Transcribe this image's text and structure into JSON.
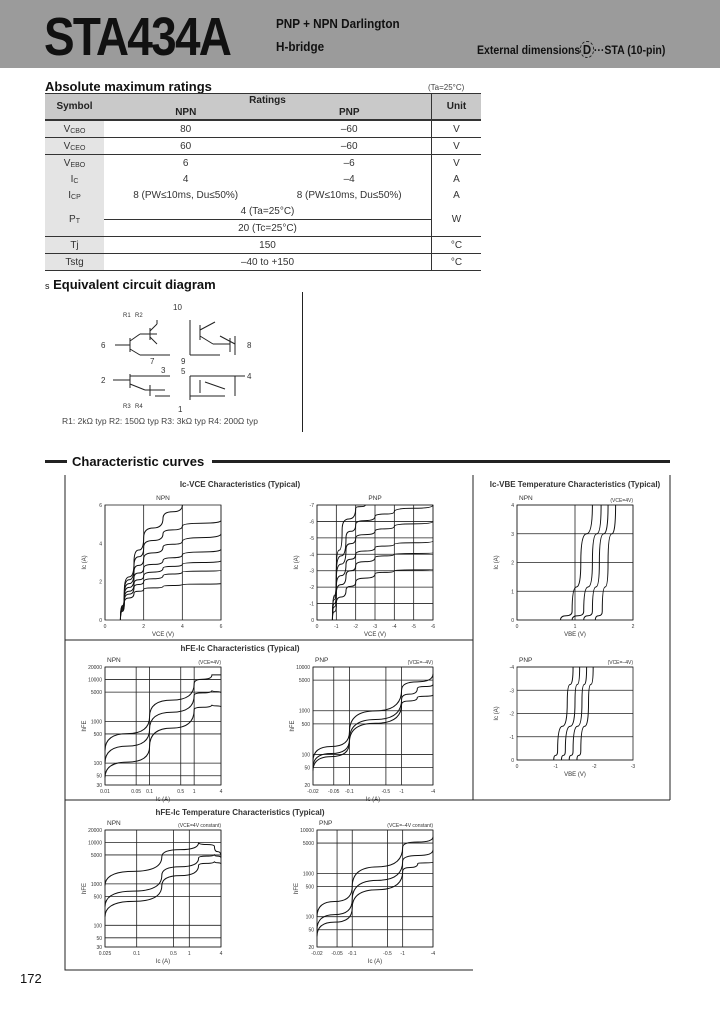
{
  "header": {
    "part_number": "STA434A",
    "subtitle_line1": "PNP + NPN Darlington",
    "subtitle_line2": "H-bridge",
    "external_dimensions_label": "External dimensions",
    "external_dimensions_code": "D",
    "external_dimensions_package": "···STA (10-pin)"
  },
  "ratings": {
    "title": "Absolute maximum ratings",
    "condition": "(Ta=25°C)",
    "columns": {
      "symbol": "Symbol",
      "ratings": "Ratings",
      "npn": "NPN",
      "pnp": "PNP",
      "unit": "Unit"
    },
    "rows": [
      {
        "sym": "V",
        "sub": "CBO",
        "npn": "80",
        "pnp": "–60",
        "unit": "V"
      },
      {
        "sym": "V",
        "sub": "CEO",
        "npn": "60",
        "pnp": "–60",
        "unit": "V"
      },
      {
        "sym": "V",
        "sub": "EBO",
        "npn": "6",
        "pnp": "–6",
        "unit": "V"
      },
      {
        "sym": "I",
        "sub": "C",
        "npn": "4",
        "pnp": "–4",
        "unit": "A"
      },
      {
        "sym": "I",
        "sub": "CP",
        "npn": "8 (PW≤10ms, Du≤50%)",
        "pnp": "8 (PW≤10ms, Du≤50%)",
        "unit": "A"
      }
    ],
    "pt": {
      "sym": "P",
      "sub": "T",
      "value1": "4 (Ta=25°C)",
      "value2": "20 (Tc=25°C)",
      "unit": "W"
    },
    "tj": {
      "sym": "Tj",
      "value": "150",
      "unit": "°C"
    },
    "tstg": {
      "sym": "Tstg",
      "value": "–40 to +150",
      "unit": "°C"
    }
  },
  "circuit": {
    "title": "Equivalent circuit diagram",
    "bullet": "s",
    "pins": [
      "10",
      "6",
      "7",
      "8",
      "9",
      "2",
      "3",
      "5",
      "4",
      "1"
    ],
    "resistor_labels": [
      "R1",
      "R2",
      "R3",
      "R4"
    ],
    "legend": "R1: 2kΩ typ  R2: 150Ω typ  R3: 3kΩ typ  R4: 200Ω typ"
  },
  "curves_section": {
    "title": "Characteristic curves"
  },
  "chart_titles": {
    "ic_vce": "Ic-VCE Characteristics (Typical)",
    "ic_vbe_temp": "Ic-VBE Temperature Characteristics (Typical)",
    "hfe_ic": "hFE-Ic Characteristics (Typical)",
    "hfe_ic_temp": "hFE-Ic Temperature Characteristics (Typical)"
  },
  "chart_data": [
    {
      "type": "line",
      "title": "NPN",
      "xlabel": "VCE (V)",
      "ylabel": "Ic (A)",
      "xscale": "linear",
      "yscale": "linear",
      "xlim": [
        0,
        6
      ],
      "ylim": [
        0,
        6
      ],
      "xticks": [
        0,
        2,
        4,
        6
      ],
      "yticks": [
        0,
        2,
        4,
        6
      ],
      "grid": "vertical",
      "note": "",
      "series": [
        {
          "points": [
            [
              0.8,
              0
            ],
            [
              1,
              1.5
            ],
            [
              1.5,
              3
            ],
            [
              2,
              4.3
            ],
            [
              3,
              5.3
            ],
            [
              4,
              6
            ]
          ]
        },
        {
          "points": [
            [
              0.8,
              0
            ],
            [
              1,
              1.4
            ],
            [
              1.5,
              2.8
            ],
            [
              2,
              3.8
            ],
            [
              3,
              4.5
            ],
            [
              4,
              4.9
            ],
            [
              6,
              5.2
            ]
          ]
        },
        {
          "points": [
            [
              0.8,
              0
            ],
            [
              1,
              1.3
            ],
            [
              1.5,
              2.5
            ],
            [
              2,
              3.2
            ],
            [
              3,
              3.8
            ],
            [
              4,
              4.1
            ],
            [
              6,
              4.5
            ]
          ]
        },
        {
          "points": [
            [
              0.8,
              0
            ],
            [
              1,
              1.2
            ],
            [
              1.5,
              2.2
            ],
            [
              2,
              2.7
            ],
            [
              3,
              3.1
            ],
            [
              4,
              3.4
            ],
            [
              6,
              3.7
            ]
          ]
        },
        {
          "points": [
            [
              0.8,
              0
            ],
            [
              1,
              1.1
            ],
            [
              1.5,
              1.9
            ],
            [
              2,
              2.3
            ],
            [
              3,
              2.7
            ],
            [
              4,
              2.9
            ],
            [
              6,
              3.1
            ]
          ]
        },
        {
          "points": [
            [
              0.8,
              0
            ],
            [
              1,
              1.0
            ],
            [
              1.5,
              1.7
            ],
            [
              2,
              2.0
            ],
            [
              3,
              2.3
            ],
            [
              4,
              2.5
            ],
            [
              6,
              2.6
            ]
          ]
        },
        {
          "points": [
            [
              0.8,
              0
            ],
            [
              1,
              0.9
            ],
            [
              1.5,
              1.4
            ],
            [
              2,
              1.6
            ],
            [
              3,
              1.75
            ],
            [
              4,
              1.85
            ],
            [
              6,
              1.9
            ]
          ]
        }
      ]
    },
    {
      "type": "line",
      "title": "PNP",
      "xlabel": "VCE (V)",
      "ylabel": "Ic (A)",
      "xscale": "linear",
      "yscale": "linear",
      "xlim": [
        0,
        -6
      ],
      "ylim": [
        0,
        -7
      ],
      "xticks": [
        0,
        -1,
        -2,
        -3,
        -4,
        -5,
        -6
      ],
      "yticks": [
        0,
        -1,
        -2,
        -3,
        -4,
        -5,
        -6,
        -7
      ],
      "grid": "both",
      "note": "",
      "series": [
        {
          "points": [
            [
              -0.8,
              0
            ],
            [
              -1,
              -3
            ],
            [
              -1.3,
              -5.5
            ],
            [
              -2,
              -6.8
            ],
            [
              -2.5,
              -7
            ]
          ]
        },
        {
          "points": [
            [
              -0.8,
              0
            ],
            [
              -1,
              -2.8
            ],
            [
              -1.5,
              -5
            ],
            [
              -2,
              -5.8
            ],
            [
              -3,
              -6.3
            ],
            [
              -4,
              -6.6
            ],
            [
              -6,
              -7
            ]
          ]
        },
        {
          "points": [
            [
              -0.8,
              0
            ],
            [
              -1,
              -2.5
            ],
            [
              -1.5,
              -4.3
            ],
            [
              -2,
              -5
            ],
            [
              -3,
              -5.4
            ],
            [
              -4,
              -5.7
            ],
            [
              -6,
              -6
            ]
          ]
        },
        {
          "points": [
            [
              -0.8,
              0
            ],
            [
              -1,
              -2
            ],
            [
              -1.5,
              -3.4
            ],
            [
              -2,
              -4
            ],
            [
              -3,
              -4.4
            ],
            [
              -4,
              -4.6
            ],
            [
              -6,
              -4.8
            ]
          ]
        },
        {
          "points": [
            [
              -0.8,
              0
            ],
            [
              -1,
              -1.6
            ],
            [
              -1.5,
              -2.7
            ],
            [
              -2,
              -3.3
            ],
            [
              -3,
              -3.8
            ],
            [
              -4,
              -4
            ],
            [
              -6,
              -4.1
            ]
          ]
        },
        {
          "points": [
            [
              -0.8,
              0
            ],
            [
              -1,
              -1
            ],
            [
              -1.5,
              -1.8
            ],
            [
              -2,
              -2.3
            ],
            [
              -3,
              -2.8
            ],
            [
              -4,
              -3
            ],
            [
              -6,
              -3.1
            ]
          ]
        }
      ]
    },
    {
      "type": "line",
      "title": "NPN",
      "xlabel": "VBE (V)",
      "ylabel": "Ic (A)",
      "xscale": "linear",
      "yscale": "linear",
      "xlim": [
        0,
        2
      ],
      "ylim": [
        0,
        4
      ],
      "xticks": [
        0,
        1,
        2
      ],
      "yticks": [
        0,
        1,
        2,
        3,
        4
      ],
      "grid": "both",
      "note": "(VCE=4V)",
      "series": [
        {
          "points": [
            [
              0.75,
              0
            ],
            [
              0.95,
              0.3
            ],
            [
              1.1,
              2
            ],
            [
              1.3,
              4
            ]
          ]
        },
        {
          "points": [
            [
              0.95,
              0
            ],
            [
              1.15,
              0.3
            ],
            [
              1.3,
              2
            ],
            [
              1.45,
              4
            ]
          ]
        },
        {
          "points": [
            [
              1.15,
              0
            ],
            [
              1.3,
              0.3
            ],
            [
              1.42,
              2
            ],
            [
              1.57,
              4
            ]
          ]
        },
        {
          "points": [
            [
              1.35,
              0
            ],
            [
              1.47,
              0.3
            ],
            [
              1.57,
              2
            ],
            [
              1.7,
              4
            ]
          ]
        }
      ]
    },
    {
      "type": "line",
      "title": "PNP",
      "xlabel": "VBE (V)",
      "ylabel": "Ic (A)",
      "xscale": "linear",
      "yscale": "linear",
      "xlim": [
        0,
        -3
      ],
      "ylim": [
        0,
        -4
      ],
      "xticks": [
        0,
        -1,
        -2,
        -3
      ],
      "yticks": [
        0,
        -1,
        -2,
        -3,
        -4
      ],
      "grid": "horizontal",
      "note": "(VCE=–4V)",
      "series": [
        {
          "points": [
            [
              -0.95,
              0
            ],
            [
              -1.05,
              -0.4
            ],
            [
              -1.3,
              -2.5
            ],
            [
              -1.45,
              -4
            ]
          ]
        },
        {
          "points": [
            [
              -1.15,
              0
            ],
            [
              -1.25,
              -0.4
            ],
            [
              -1.5,
              -2.5
            ],
            [
              -1.62,
              -4
            ]
          ]
        },
        {
          "points": [
            [
              -1.35,
              0
            ],
            [
              -1.45,
              -0.4
            ],
            [
              -1.68,
              -2.5
            ],
            [
              -1.8,
              -4
            ]
          ]
        },
        {
          "points": [
            [
              -1.55,
              0
            ],
            [
              -1.65,
              -0.4
            ],
            [
              -1.85,
              -2.5
            ],
            [
              -1.97,
              -4
            ]
          ]
        }
      ]
    },
    {
      "type": "line",
      "title": "NPN",
      "xlabel": "Ic (A)",
      "ylabel": "hFE",
      "xscale": "log",
      "yscale": "log",
      "xlim": [
        0.01,
        4
      ],
      "ylim": [
        30,
        20000
      ],
      "xticks": [
        0.01,
        0.05,
        0.1,
        0.5,
        1,
        4
      ],
      "yticks": [
        30,
        50,
        100,
        500,
        1000,
        5000,
        10000,
        20000
      ],
      "grid": "both",
      "note": "(VCE=4V)",
      "series": [
        {
          "points": [
            [
              0.01,
              200
            ],
            [
              0.1,
              1300
            ],
            [
              1,
              8000
            ],
            [
              2.5,
              13000
            ],
            [
              4,
              13000
            ]
          ]
        },
        {
          "points": [
            [
              0.01,
              100
            ],
            [
              0.1,
              650
            ],
            [
              1,
              4200
            ],
            [
              2.5,
              5500
            ],
            [
              4,
              4800
            ]
          ]
        },
        {
          "points": [
            [
              0.01,
              45
            ],
            [
              0.1,
              250
            ],
            [
              1,
              1900
            ],
            [
              2.5,
              2500
            ],
            [
              4,
              2200
            ]
          ]
        }
      ]
    },
    {
      "type": "line",
      "title": "PNP",
      "xlabel": "Ic (A)",
      "ylabel": "hFE",
      "xscale": "log",
      "yscale": "log",
      "xlim": [
        -0.02,
        -4
      ],
      "ylim": [
        20,
        10000
      ],
      "xticks": [
        -0.02,
        -0.05,
        -0.1,
        -0.5,
        -1,
        -4
      ],
      "yticks": [
        20,
        50,
        100,
        500,
        1000,
        5000,
        10000
      ],
      "grid": "both",
      "note": "(VCE=–4V)",
      "series": [
        {
          "points": [
            [
              -0.02,
              70
            ],
            [
              -0.1,
              330
            ],
            [
              -1,
              3000
            ],
            [
              -4,
              7000
            ]
          ]
        },
        {
          "points": [
            [
              -0.02,
              50
            ],
            [
              -0.1,
              220
            ],
            [
              -1,
              1800
            ],
            [
              -2,
              3200
            ],
            [
              -4,
              4000
            ]
          ]
        },
        {
          "points": [
            [
              -0.02,
              42
            ],
            [
              -0.1,
              190
            ],
            [
              -1,
              1400
            ],
            [
              -2,
              2000
            ],
            [
              -4,
              2300
            ]
          ]
        }
      ]
    },
    {
      "type": "line",
      "title": "NPN",
      "xlabel": "Ic (A)",
      "ylabel": "hFE",
      "xscale": "log",
      "yscale": "log",
      "xlim": [
        0.025,
        4
      ],
      "ylim": [
        30,
        20000
      ],
      "xticks": [
        0.025,
        0.1,
        0.5,
        1,
        4
      ],
      "yticks": [
        30,
        50,
        100,
        500,
        1000,
        5000,
        10000,
        20000
      ],
      "grid": "both",
      "note": "(VCE=4V constant)",
      "series": [
        {
          "points": [
            [
              0.025,
              900
            ],
            [
              0.3,
              4500
            ],
            [
              1.5,
              10000
            ],
            [
              3,
              8000
            ],
            [
              4,
              4500
            ]
          ]
        },
        {
          "points": [
            [
              0.025,
              280
            ],
            [
              0.3,
              1600
            ],
            [
              1.5,
              4200
            ],
            [
              3,
              5200
            ],
            [
              4,
              4200
            ]
          ]
        },
        {
          "points": [
            [
              0.025,
              160
            ],
            [
              0.3,
              900
            ],
            [
              1.5,
              2800
            ],
            [
              3,
              3500
            ],
            [
              4,
              3000
            ]
          ]
        }
      ]
    },
    {
      "type": "line",
      "title": "PNP",
      "xlabel": "Ic (A)",
      "ylabel": "hFE",
      "xscale": "log",
      "yscale": "log",
      "xlim": [
        -0.02,
        -4
      ],
      "ylim": [
        20,
        10000
      ],
      "xticks": [
        -0.02,
        -0.05,
        -0.1,
        -0.5,
        -1,
        -4
      ],
      "yticks": [
        20,
        50,
        100,
        500,
        1000,
        5000,
        10000
      ],
      "grid": "both",
      "note": "(VCE=–4V constant)",
      "series": [
        {
          "points": [
            [
              -0.02,
              100
            ],
            [
              -0.1,
              500
            ],
            [
              -1,
              4000
            ],
            [
              -4,
              7000
            ]
          ]
        },
        {
          "points": [
            [
              -0.02,
              50
            ],
            [
              -0.1,
              250
            ],
            [
              -1,
              1900
            ],
            [
              -4,
              3500
            ]
          ]
        },
        {
          "points": [
            [
              -0.02,
              35
            ],
            [
              -0.1,
              160
            ],
            [
              -1,
              1100
            ],
            [
              -2,
              1700
            ],
            [
              -4,
              1800
            ]
          ]
        }
      ]
    }
  ],
  "page_number": "172"
}
